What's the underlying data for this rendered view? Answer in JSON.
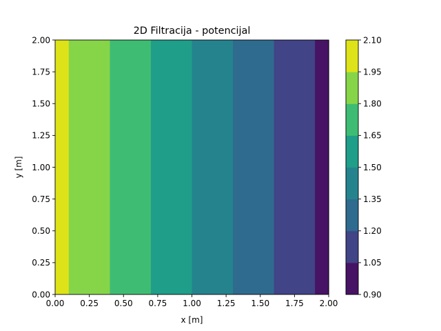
{
  "chart_data": {
    "type": "contourf",
    "title": "2D Filtracija - potencijal",
    "xlabel": "x [m]",
    "ylabel": "y [m]",
    "xlim": [
      0.0,
      2.0
    ],
    "ylim": [
      0.0,
      2.0
    ],
    "x_ticks": [
      "0.00",
      "0.25",
      "0.50",
      "0.75",
      "1.00",
      "1.25",
      "1.50",
      "1.75",
      "2.00"
    ],
    "y_ticks": [
      "0.00",
      "0.25",
      "0.50",
      "0.75",
      "1.00",
      "1.25",
      "1.50",
      "1.75",
      "2.00"
    ],
    "grid": false,
    "bands": [
      {
        "x0": 0.0,
        "x1": 0.1,
        "level_low": 1.95,
        "level_high": 2.1,
        "color": "#dde318"
      },
      {
        "x0": 0.1,
        "x1": 0.4,
        "level_low": 1.8,
        "level_high": 1.95,
        "color": "#86d549"
      },
      {
        "x0": 0.4,
        "x1": 0.7,
        "level_low": 1.65,
        "level_high": 1.8,
        "color": "#3fbc73"
      },
      {
        "x0": 0.7,
        "x1": 1.0,
        "level_low": 1.5,
        "level_high": 1.65,
        "color": "#1f9e89"
      },
      {
        "x0": 1.0,
        "x1": 1.3,
        "level_low": 1.35,
        "level_high": 1.5,
        "color": "#25838e"
      },
      {
        "x0": 1.3,
        "x1": 1.6,
        "level_low": 1.2,
        "level_high": 1.35,
        "color": "#2f6b8e"
      },
      {
        "x0": 1.6,
        "x1": 1.9,
        "level_low": 1.05,
        "level_high": 1.2,
        "color": "#414487"
      },
      {
        "x0": 1.9,
        "x1": 2.0,
        "level_low": 0.9,
        "level_high": 1.05,
        "color": "#471365"
      }
    ],
    "colorbar": {
      "range": [
        0.9,
        2.1
      ],
      "ticks": [
        "0.90",
        "1.05",
        "1.20",
        "1.35",
        "1.50",
        "1.65",
        "1.80",
        "1.95",
        "2.10"
      ],
      "colors": [
        "#471365",
        "#414487",
        "#2f6b8e",
        "#25838e",
        "#1f9e89",
        "#3fbc73",
        "#86d549",
        "#dde318"
      ]
    }
  }
}
